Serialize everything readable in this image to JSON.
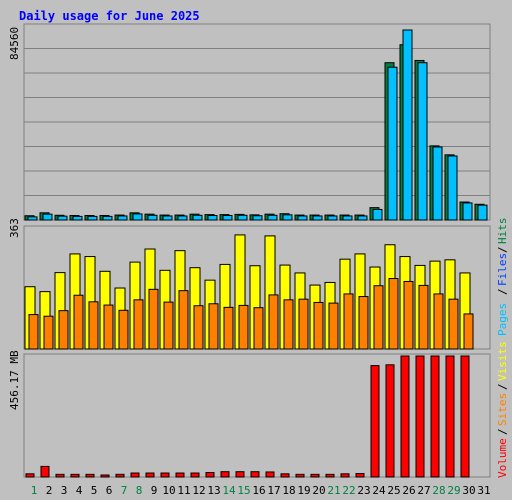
{
  "title": "Daily usage for June 2025",
  "colors": {
    "background": "#c0c0c0",
    "title": "#0000ff",
    "hits": "#008040",
    "files": "#0040ff",
    "pages": "#00c0ff",
    "visits": "#ffff00",
    "sites": "#ff8000",
    "volume": "#ff0000",
    "weekend_label": "#008040",
    "weekday_label": "#000000"
  },
  "chart_data": [
    {
      "type": "bar",
      "panel": "top",
      "ylabel": "84560",
      "ylim": [
        0,
        84560
      ],
      "categories": [
        "1",
        "2",
        "3",
        "4",
        "5",
        "6",
        "7",
        "8",
        "9",
        "10",
        "11",
        "12",
        "13",
        "14",
        "15",
        "16",
        "17",
        "18",
        "19",
        "20",
        "21",
        "22",
        "23",
        "24",
        "25",
        "26",
        "27",
        "28",
        "29",
        "30",
        "31"
      ],
      "weekend_days": [
        "1",
        "7",
        "8",
        "14",
        "15",
        "21",
        "22",
        "28",
        "29"
      ],
      "series": [
        {
          "name": "Hits",
          "values": [
            1900,
            3200,
            2100,
            2000,
            2000,
            2000,
            2200,
            3200,
            2600,
            2200,
            2200,
            2600,
            2400,
            2400,
            2500,
            2300,
            2600,
            2800,
            2200,
            2200,
            2200,
            2200,
            2200,
            5500,
            70000,
            78000,
            71000,
            33000,
            29000,
            8000,
            7000
          ]
        },
        {
          "name": "Files",
          "values": [
            1400,
            2600,
            1700,
            1600,
            1600,
            1600,
            1800,
            2700,
            2100,
            1800,
            1800,
            2100,
            2000,
            2000,
            2100,
            1900,
            2100,
            2300,
            1800,
            1800,
            1800,
            1800,
            1800,
            4700,
            68000,
            84560,
            70000,
            32500,
            28500,
            7600,
            6600
          ]
        }
      ]
    },
    {
      "type": "bar",
      "panel": "middle",
      "ylabel": "363",
      "ylim": [
        0,
        363
      ],
      "categories": [
        "1",
        "2",
        "3",
        "4",
        "5",
        "6",
        "7",
        "8",
        "9",
        "10",
        "11",
        "12",
        "13",
        "14",
        "15",
        "16",
        "17",
        "18",
        "19",
        "20",
        "21",
        "22",
        "23",
        "24",
        "25",
        "26",
        "27",
        "28",
        "29",
        "30",
        "31"
      ],
      "series": [
        {
          "name": "Pages",
          "values": [
            0,
            0,
            0,
            0,
            0,
            0,
            0,
            0,
            0,
            0,
            0,
            0,
            0,
            0,
            0,
            0,
            0,
            0,
            0,
            0,
            0,
            0,
            0,
            0,
            0,
            0,
            0,
            0,
            0,
            0,
            0
          ]
        },
        {
          "name": "Visits",
          "values": [
            190,
            175,
            233,
            290,
            282,
            237,
            186,
            265,
            305,
            240,
            300,
            248,
            210,
            258,
            348,
            254,
            345,
            256,
            232,
            195,
            203,
            274,
            290,
            250,
            318,
            282,
            255,
            268,
            272,
            232,
            0
          ]
        },
        {
          "name": "Sites",
          "values": [
            105,
            100,
            117,
            164,
            144,
            134,
            118,
            150,
            182,
            143,
            178,
            132,
            138,
            127,
            133,
            126,
            165,
            150,
            152,
            142,
            140,
            168,
            160,
            193,
            215,
            206,
            194,
            168,
            152,
            107,
            0
          ]
        }
      ]
    },
    {
      "type": "bar",
      "panel": "bottom",
      "ylabel": "456.17 MB",
      "ylim": [
        0,
        456.17
      ],
      "categories": [
        "1",
        "2",
        "3",
        "4",
        "5",
        "6",
        "7",
        "8",
        "9",
        "10",
        "11",
        "12",
        "13",
        "14",
        "15",
        "16",
        "17",
        "18",
        "19",
        "20",
        "21",
        "22",
        "23",
        "24",
        "25",
        "26",
        "27",
        "28",
        "29",
        "30",
        "31"
      ],
      "series": [
        {
          "name": "Volume",
          "values": [
            12,
            40,
            10,
            10,
            10,
            6,
            10,
            15,
            15,
            15,
            15,
            15,
            17,
            20,
            20,
            20,
            19,
            12,
            10,
            10,
            10,
            12,
            13,
            420,
            423,
            456.17,
            456.17,
            456.17,
            456.17,
            456.17,
            0
          ]
        }
      ]
    }
  ],
  "legend_middle": [
    "Hits",
    "Files",
    "Pages"
  ],
  "legend_bottom": [
    "Volume",
    "Sites",
    "Visits"
  ]
}
